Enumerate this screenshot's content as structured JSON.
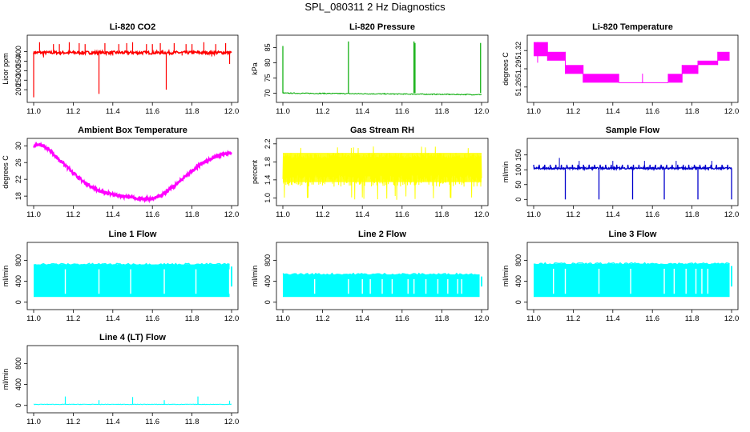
{
  "page": {
    "title": "SPL_080311  2 Hz Diagnostics"
  },
  "chart_data": [
    {
      "id": "co2",
      "type": "line",
      "title": "Li-820 CO2",
      "ylabel": "Licor ppm",
      "color": "#ff0000",
      "xlim": [
        11.0,
        12.0
      ],
      "ylim": [
        150,
        470
      ],
      "x_ticks": [
        "11.0",
        "11.2",
        "11.4",
        "11.6",
        "11.8",
        "12.0"
      ],
      "y_ticks": [
        200,
        250,
        300,
        350,
        400
      ],
      "series": [
        {
          "name": "CO2",
          "base": 395,
          "noise": 8,
          "spikes": [
            {
              "x": 11.0,
              "y": 160
            },
            {
              "x": 11.03,
              "y": 450
            },
            {
              "x": 11.05,
              "y": 370
            },
            {
              "x": 11.1,
              "y": 440
            },
            {
              "x": 11.13,
              "y": 440
            },
            {
              "x": 11.18,
              "y": 450
            },
            {
              "x": 11.23,
              "y": 445
            },
            {
              "x": 11.26,
              "y": 440
            },
            {
              "x": 11.33,
              "y": 178
            },
            {
              "x": 11.36,
              "y": 445
            },
            {
              "x": 11.4,
              "y": 380
            },
            {
              "x": 11.43,
              "y": 440
            },
            {
              "x": 11.47,
              "y": 445
            },
            {
              "x": 11.5,
              "y": 450
            },
            {
              "x": 11.53,
              "y": 385
            },
            {
              "x": 11.57,
              "y": 440
            },
            {
              "x": 11.6,
              "y": 440
            },
            {
              "x": 11.64,
              "y": 445
            },
            {
              "x": 11.67,
              "y": 200
            },
            {
              "x": 11.71,
              "y": 445
            },
            {
              "x": 11.75,
              "y": 380
            },
            {
              "x": 11.77,
              "y": 440
            },
            {
              "x": 11.8,
              "y": 440
            },
            {
              "x": 11.86,
              "y": 450
            },
            {
              "x": 11.9,
              "y": 375
            },
            {
              "x": 11.92,
              "y": 440
            },
            {
              "x": 11.97,
              "y": 445
            },
            {
              "x": 11.99,
              "y": 335
            }
          ]
        }
      ]
    },
    {
      "id": "pressure",
      "type": "line",
      "title": "Li-820 Pressure",
      "ylabel": "kPa",
      "color": "#00aa00",
      "xlim": [
        11.0,
        12.0
      ],
      "ylim": [
        68,
        88
      ],
      "x_ticks": [
        "11.0",
        "11.2",
        "11.4",
        "11.6",
        "11.8",
        "12.0"
      ],
      "y_ticks": [
        70,
        75,
        80,
        85
      ],
      "series": [
        {
          "name": "Pressure",
          "start": 70.0,
          "end": 69.5,
          "noise": 0.15,
          "spikes": [
            {
              "x": 11.0,
              "y": 85.5
            },
            {
              "x": 11.33,
              "y": 87.0
            },
            {
              "x": 11.66,
              "y": 87.0
            },
            {
              "x": 11.665,
              "y": 86.5
            },
            {
              "x": 11.995,
              "y": 86.5
            }
          ]
        }
      ]
    },
    {
      "id": "licor_temp",
      "type": "line",
      "title": "Li-820 Temperature",
      "ylabel": "degrees C",
      "color": "#ff00ff",
      "xlim": [
        11.0,
        12.0
      ],
      "ylim": [
        51.24,
        51.34
      ],
      "x_ticks": [
        "11.0",
        "11.2",
        "11.4",
        "11.6",
        "11.8",
        "12.0"
      ],
      "y_ticks": [
        "51.26",
        "51.29",
        "51.32"
      ],
      "y_tick_values": [
        51.26,
        51.29,
        51.32
      ],
      "series": [
        {
          "name": "Temperature",
          "bands": [
            {
              "x0": 11.0,
              "x1": 11.07,
              "lo": 51.3107,
              "hi": 51.3339
            },
            {
              "x0": 11.07,
              "x1": 11.16,
              "lo": 51.3034,
              "hi": 51.3179
            },
            {
              "x0": 11.16,
              "x1": 11.25,
              "lo": 51.2817,
              "hi": 51.2962
            },
            {
              "x0": 11.25,
              "x1": 11.43,
              "lo": 51.2672,
              "hi": 51.2817
            },
            {
              "x0": 11.43,
              "x1": 11.68,
              "lo": 51.2672,
              "hi": 51.2672
            },
            {
              "x0": 11.68,
              "x1": 11.75,
              "lo": 51.2672,
              "hi": 51.2817
            },
            {
              "x0": 11.75,
              "x1": 11.83,
              "lo": 51.2817,
              "hi": 51.2962
            },
            {
              "x0": 11.83,
              "x1": 11.93,
              "lo": 51.2962,
              "hi": 51.3034
            },
            {
              "x0": 11.93,
              "x1": 11.99,
              "lo": 51.3034,
              "hi": 51.3179
            }
          ]
        }
      ]
    },
    {
      "id": "ambient_temp",
      "type": "line",
      "title": "Ambient Box Temperature",
      "ylabel": "degrees C",
      "color": "#ff00ff",
      "xlim": [
        11.0,
        12.0
      ],
      "ylim": [
        16.5,
        31.0
      ],
      "x_ticks": [
        "11.0",
        "11.2",
        "11.4",
        "11.6",
        "11.8",
        "12.0"
      ],
      "y_ticks": [
        18,
        22,
        26,
        30
      ],
      "series": [
        {
          "name": "Ambient Temperature",
          "noise": 0.35,
          "knots": [
            [
              11.0,
              29.8
            ],
            [
              11.03,
              30.3
            ],
            [
              11.07,
              29.5
            ],
            [
              11.1,
              28.0
            ],
            [
              11.15,
              25.8
            ],
            [
              11.2,
              23.6
            ],
            [
              11.25,
              21.5
            ],
            [
              11.3,
              20.0
            ],
            [
              11.35,
              18.9
            ],
            [
              11.4,
              18.4
            ],
            [
              11.45,
              18.0
            ],
            [
              11.5,
              17.6
            ],
            [
              11.55,
              17.3
            ],
            [
              11.6,
              17.4
            ],
            [
              11.65,
              18.3
            ],
            [
              11.7,
              20.0
            ],
            [
              11.75,
              22.0
            ],
            [
              11.8,
              24.0
            ],
            [
              11.85,
              25.8
            ],
            [
              11.9,
              27.0
            ],
            [
              11.95,
              27.8
            ],
            [
              12.0,
              28.5
            ]
          ]
        }
      ]
    },
    {
      "id": "rh",
      "type": "line",
      "title": "Gas Stream RH",
      "ylabel": "percent",
      "color": "#ffff00",
      "xlim": [
        11.0,
        12.0
      ],
      "ylim": [
        0.9,
        2.25
      ],
      "x_ticks": [
        "11.0",
        "11.2",
        "11.4",
        "11.6",
        "11.8",
        "12.0"
      ],
      "y_ticks": [
        "1.0",
        "1.4",
        "1.8",
        "2.2"
      ],
      "y_tick_values": [
        1.0,
        1.4,
        1.8,
        2.2
      ],
      "series": [
        {
          "name": "RH",
          "lo": 1.25,
          "hi": 2.0,
          "min_spike": 0.95,
          "max_spike": 2.15
        }
      ]
    },
    {
      "id": "sample_flow",
      "type": "line",
      "title": "Sample Flow",
      "ylabel": "ml/min",
      "color": "#0000cc",
      "xlim": [
        11.0,
        12.0
      ],
      "ylim": [
        -10,
        195
      ],
      "x_ticks": [
        "11.0",
        "11.2",
        "11.4",
        "11.6",
        "11.8",
        "12.0"
      ],
      "y_ticks": [
        0,
        50,
        100,
        150
      ],
      "series": [
        {
          "name": "Sample Flow",
          "base": 105,
          "noise": 3,
          "dips": [
            11.16,
            11.33,
            11.5,
            11.66,
            11.83,
            12.0
          ],
          "dip_y": 0,
          "peaks": [
            11.23,
            11.4,
            11.56,
            11.72,
            11.9
          ],
          "peak_y": 130
        }
      ]
    },
    {
      "id": "line1",
      "type": "line",
      "title": "Line 1 Flow",
      "ylabel": "ml/min",
      "color": "#00ffff",
      "xlim": [
        11.0,
        12.0
      ],
      "ylim": [
        -80,
        1080
      ],
      "x_ticks": [
        "11.0",
        "11.2",
        "11.4",
        "11.6",
        "11.8",
        "12.0"
      ],
      "y_ticks": [
        0,
        400,
        800
      ],
      "series": [
        {
          "name": "Line 1",
          "lo": 100,
          "hi": 720,
          "gaps": [
            11.16,
            11.33,
            11.49,
            11.66,
            11.82,
            11.99
          ]
        }
      ]
    },
    {
      "id": "line2",
      "type": "line",
      "title": "Line 2 Flow",
      "ylabel": "ml/min",
      "color": "#00ffff",
      "xlim": [
        11.0,
        12.0
      ],
      "ylim": [
        -80,
        1080
      ],
      "x_ticks": [
        "11.0",
        "11.2",
        "11.4",
        "11.6",
        "11.8",
        "12.0"
      ],
      "y_ticks": [
        0,
        400,
        800
      ],
      "series": [
        {
          "name": "Line 2",
          "lo": 100,
          "hi": 530,
          "gaps": [
            11.16,
            11.33,
            11.4,
            11.44,
            11.5,
            11.55,
            11.63,
            11.66,
            11.72,
            11.78,
            11.83,
            11.88,
            11.9
          ]
        }
      ]
    },
    {
      "id": "line3",
      "type": "line",
      "title": "Line 3 Flow",
      "ylabel": "ml/min",
      "color": "#00ffff",
      "xlim": [
        11.0,
        12.0
      ],
      "ylim": [
        -80,
        1080
      ],
      "x_ticks": [
        "11.0",
        "11.2",
        "11.4",
        "11.6",
        "11.8",
        "12.0"
      ],
      "y_ticks": [
        0,
        400,
        800
      ],
      "series": [
        {
          "name": "Line 3",
          "lo": 100,
          "hi": 730,
          "gaps": [
            11.1,
            11.16,
            11.33,
            11.49,
            11.66,
            11.71,
            11.77,
            11.82,
            11.85,
            11.88
          ]
        }
      ]
    },
    {
      "id": "line4",
      "type": "line",
      "title": "Line 4 (LT) Flow",
      "ylabel": "ml/min",
      "color": "#00ffff",
      "xlim": [
        11.0,
        12.0
      ],
      "ylim": [
        -80,
        1080
      ],
      "x_ticks": [
        "11.0",
        "11.2",
        "11.4",
        "11.6",
        "11.8",
        "12.0"
      ],
      "y_ticks": [
        0,
        400,
        800
      ],
      "series": [
        {
          "name": "Line 4 (LT)",
          "base": 20,
          "noise": 5,
          "spikes": [
            {
              "x": 11.16,
              "y": 170
            },
            {
              "x": 11.33,
              "y": 100
            },
            {
              "x": 11.5,
              "y": 160
            },
            {
              "x": 11.66,
              "y": 100
            },
            {
              "x": 11.83,
              "y": 170
            },
            {
              "x": 11.99,
              "y": 90
            }
          ]
        }
      ]
    }
  ]
}
